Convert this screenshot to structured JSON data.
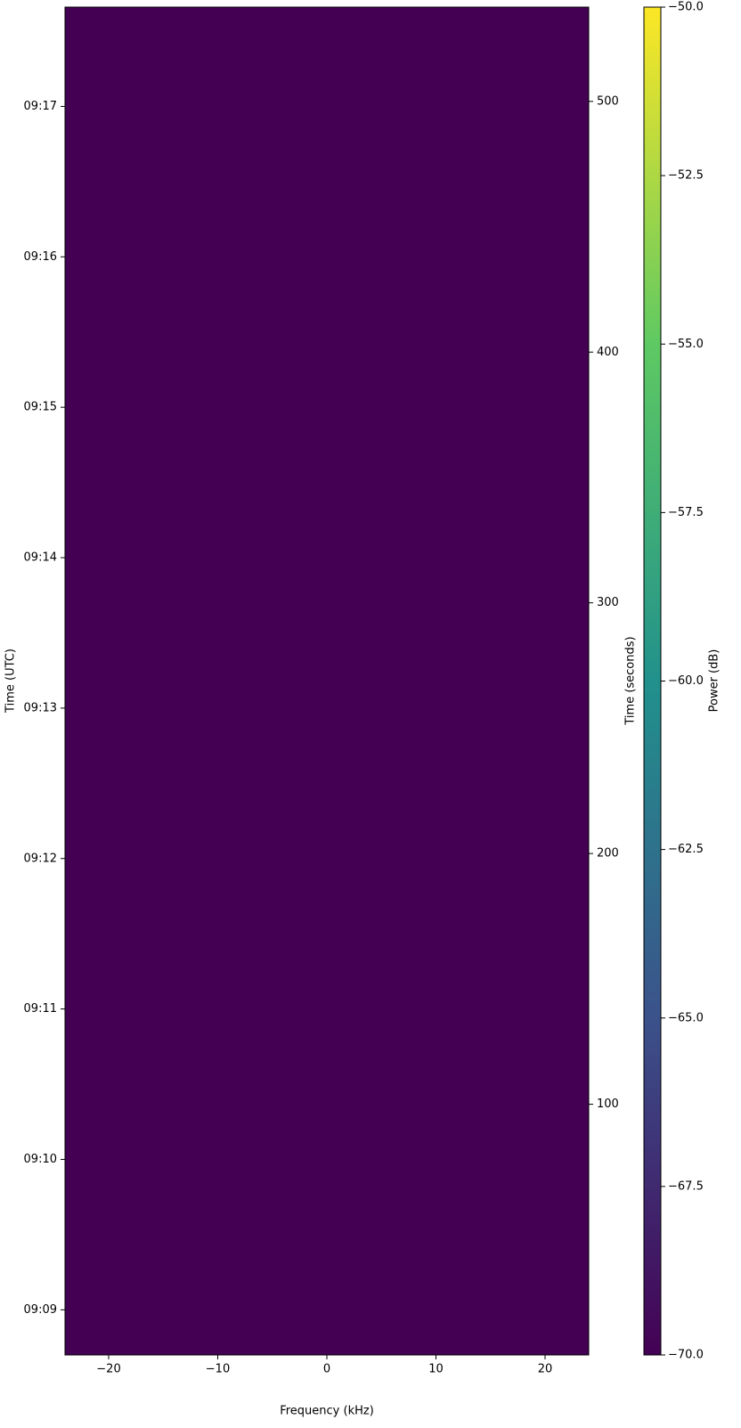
{
  "chart_data": {
    "type": "spectrogram",
    "xlabel": "Frequency (kHz)",
    "ylabel": "Time (UTC)",
    "y2label": "Time (seconds)",
    "xlim": [
      -24,
      24
    ],
    "xticks": [
      {
        "value": -20,
        "label": "−20"
      },
      {
        "value": -10,
        "label": "−10"
      },
      0,
      10,
      20
    ],
    "ylim": [
      0,
      537.6
    ],
    "yticks": [
      {
        "value": 18,
        "label": "09:09"
      },
      {
        "value": 78,
        "label": "09:10"
      },
      {
        "value": 138,
        "label": "09:11"
      },
      {
        "value": 198,
        "label": "09:12"
      },
      {
        "value": 258,
        "label": "09:13"
      },
      {
        "value": 318,
        "label": "09:14"
      },
      {
        "value": 378,
        "label": "09:15"
      },
      {
        "value": 438,
        "label": "09:16"
      },
      {
        "value": 498,
        "label": "09:17"
      }
    ],
    "y2lim": [
      0,
      537.6
    ],
    "y2ticks": [
      100,
      200,
      300,
      400,
      500
    ],
    "colorbar": {
      "label": "Power (dB)",
      "lim": [
        -70,
        -50
      ],
      "ticks": [
        {
          "value": -70,
          "label": "−70.0"
        },
        {
          "value": -67.5,
          "label": "−67.5"
        },
        {
          "value": -65,
          "label": "−65.0"
        },
        {
          "value": -62.5,
          "label": "−62.5"
        },
        {
          "value": -60,
          "label": "−60.0"
        },
        {
          "value": -57.5,
          "label": "−57.5"
        },
        {
          "value": -55,
          "label": "−55.0"
        },
        {
          "value": -52.5,
          "label": "−52.5"
        },
        {
          "value": -50,
          "label": "−50.0"
        }
      ],
      "colormap": [
        "#440154",
        "#3b528b",
        "#21918c",
        "#5ec962",
        "#fde725"
      ]
    }
  }
}
